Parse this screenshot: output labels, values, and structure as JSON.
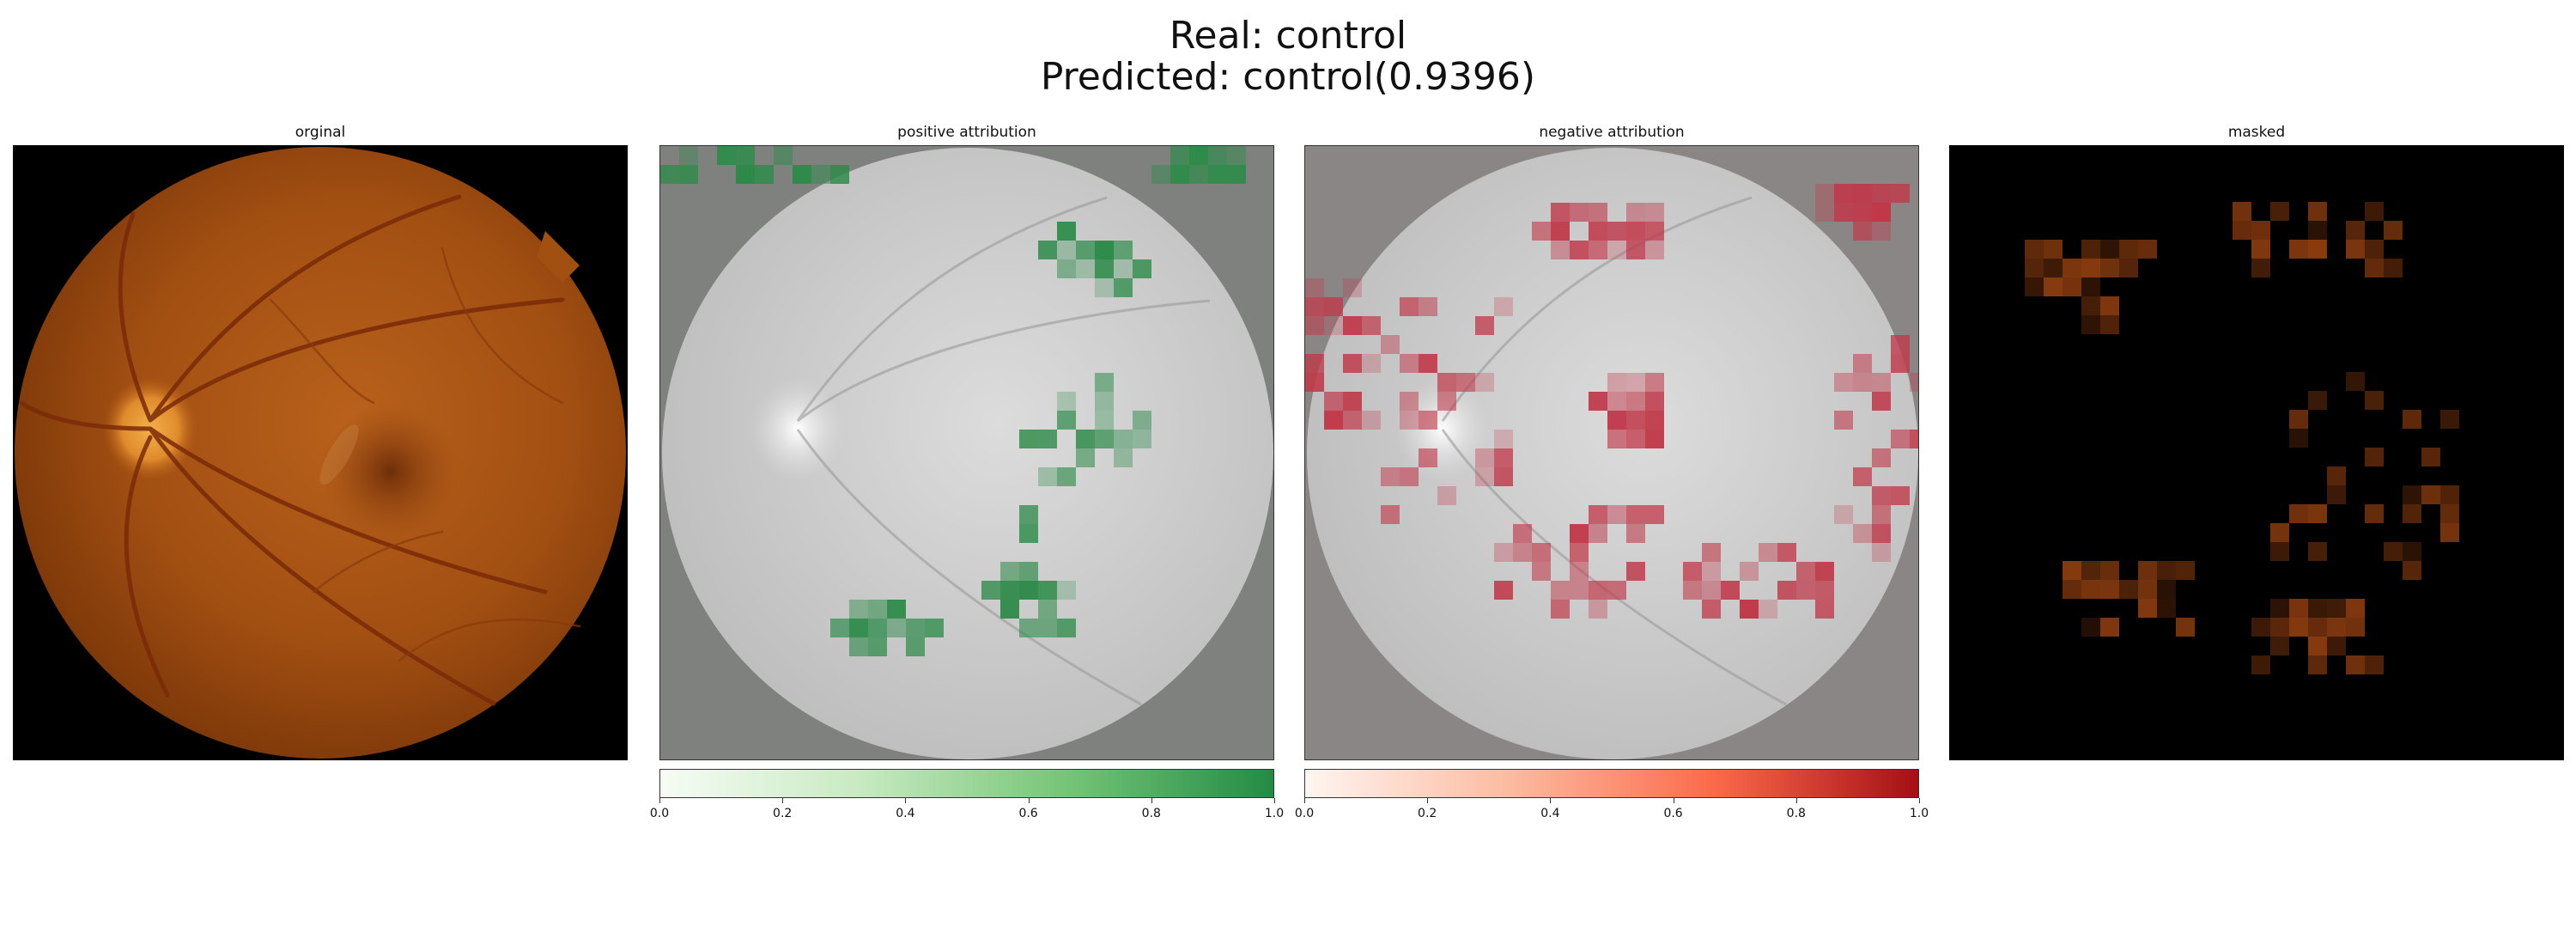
{
  "figure": {
    "title_line1": "Real: control",
    "title_line2": "Predicted: control(0.9396)"
  },
  "panels": [
    {
      "title": "orginal"
    },
    {
      "title": "positive attribution"
    },
    {
      "title": "negative attribution"
    },
    {
      "title": "masked"
    }
  ],
  "colorbars": {
    "positive": {
      "colors": [
        "#f7fcf5",
        "#c7e9c0",
        "#74c476",
        "#238b45"
      ],
      "ticks": [
        "0.0",
        "0.2",
        "0.4",
        "0.6",
        "0.8",
        "1.0"
      ]
    },
    "negative": {
      "colors": [
        "#fff5f0",
        "#fcbba1",
        "#fb6a4a",
        "#a50f15"
      ],
      "ticks": [
        "0.0",
        "0.2",
        "0.4",
        "0.6",
        "0.8",
        "1.0"
      ]
    }
  }
}
